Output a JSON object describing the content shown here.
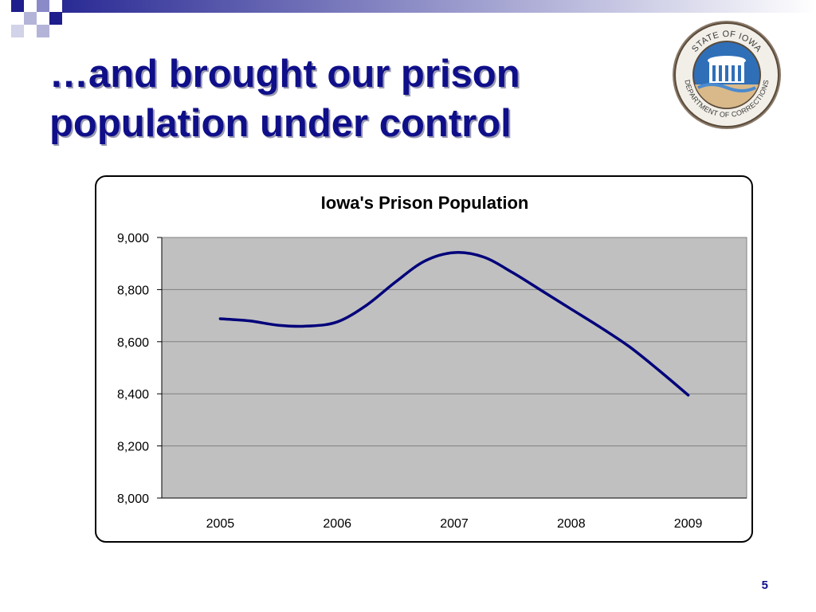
{
  "slide": {
    "title": "…and brought our prison population under control",
    "page_number": "5"
  },
  "seal": {
    "icon": "iowa-department-of-corrections-seal",
    "text_top": "STATE OF IOWA",
    "text_bottom": "DEPARTMENT OF CORRECTIONS",
    "colors": {
      "ring": "#5a4a3a",
      "sky": "#2f6fb8",
      "building": "#ffffff",
      "ground": "#d9b98a"
    }
  },
  "colors": {
    "accent_navy": "#0f0f8a",
    "line": "#00007a",
    "plot_bg": "#c0c0c0",
    "grid": "#808080"
  },
  "chart_data": {
    "type": "line",
    "title": "Iowa's Prison Population",
    "xlabel": "",
    "ylabel": "",
    "x_ticks": [
      "2005",
      "2006",
      "2007",
      "2008",
      "2009"
    ],
    "y_ticks": [
      "8,000",
      "8,200",
      "8,400",
      "8,600",
      "8,800",
      "9,000"
    ],
    "ylim": [
      8000,
      9000
    ],
    "xlim": [
      2004.5,
      2009.5
    ],
    "grid": true,
    "legend": "none",
    "series": [
      {
        "x": [
          2005.0,
          2005.25,
          2005.5,
          2005.75,
          2006.0,
          2006.25,
          2006.5,
          2006.75,
          2007.0,
          2007.25,
          2007.5,
          2007.75,
          2008.0,
          2008.25,
          2008.5,
          2008.75,
          2009.0
        ],
        "values": [
          8688,
          8680,
          8663,
          8660,
          8676,
          8740,
          8830,
          8910,
          8942,
          8925,
          8865,
          8795,
          8725,
          8655,
          8580,
          8490,
          8395
        ]
      }
    ]
  }
}
